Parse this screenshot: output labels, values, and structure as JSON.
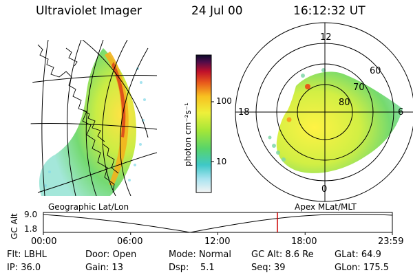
{
  "header": {
    "title": "Ultraviolet Imager",
    "date": "24 Jul 00",
    "time": "16:12:32 UT"
  },
  "colorbar": {
    "label": "photon cm⁻²s⁻¹",
    "ticks": [
      "100",
      "10"
    ]
  },
  "polar": {
    "mlt_labels": {
      "top": "12",
      "right": "6",
      "bottom": "0",
      "left": "18"
    },
    "lat_labels": [
      "60",
      "70",
      "80"
    ]
  },
  "panel_labels": {
    "left": "Geographic Lat/Lon",
    "right": "Apex MLat/MLT"
  },
  "altitude_plot": {
    "ylabel": "GC Alt",
    "ytick_top": "9.0",
    "ytick_bottom": "1.8",
    "xticks": [
      "00:00",
      "06:00",
      "12:00",
      "18:00",
      "23:59"
    ],
    "marker_color": "#cc0000"
  },
  "info": {
    "row1": [
      {
        "k": "Flt:",
        "v": "LBHL"
      },
      {
        "k": "Door:",
        "v": "Open"
      },
      {
        "k": "Mode:",
        "v": "Normal"
      },
      {
        "k": "GC Alt:",
        "v": "8.6 Re"
      },
      {
        "k": "GLat:",
        "v": "64.9"
      }
    ],
    "row2": [
      {
        "k": "IP:",
        "v": "36.0"
      },
      {
        "k": "Gain:",
        "v": "13"
      },
      {
        "k": "Dsp:",
        "v": "5.1"
      },
      {
        "k": "Seq:",
        "v": "39"
      },
      {
        "k": "GLon:",
        "v": "175.5"
      }
    ]
  }
}
